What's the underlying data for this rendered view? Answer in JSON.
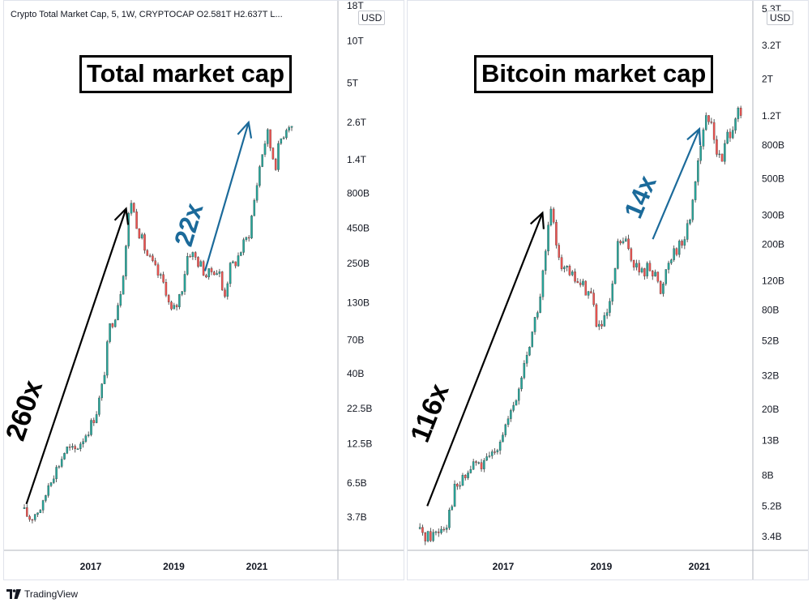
{
  "colors": {
    "candle_up": "#26a69a",
    "candle_down": "#ef5350",
    "arrow_black": "#000000",
    "arrow_blue": "#1b6a9a",
    "axis_text": "#131722",
    "axis_line": "#b2b5be"
  },
  "footer": {
    "brand": "TradingView",
    "logo_icon": "tradingview-logo-icon"
  },
  "chart_data": [
    {
      "type": "candlestick",
      "symbol_line": "Crypto Total Market Cap, 5, 1W, CRYPTOCAP  O2.581T  H2.637T  L...",
      "title": "Total market cap",
      "currency": "USD",
      "y_scale": "log",
      "y_ticks": [
        "18T",
        "10T",
        "5T",
        "2.6T",
        "1.4T",
        "800B",
        "450B",
        "250B",
        "130B",
        "70B",
        "40B",
        "22.5B",
        "12.5B",
        "6.5B",
        "3.7B"
      ],
      "y_tick_values": [
        18000,
        10000,
        5000,
        2600,
        1400,
        800,
        450,
        250,
        130,
        70,
        40,
        22.5,
        12.5,
        6.5,
        3.7
      ],
      "x_ticks": [
        "2017",
        "2019",
        "2021"
      ],
      "x_tick_values": [
        2017,
        2019,
        2021
      ],
      "x_range": [
        2015.4,
        2021.9
      ],
      "series": [
        {
          "name": "Total market cap",
          "x": [
            2015.4,
            2015.55,
            2015.7,
            2015.85,
            2016.0,
            2016.2,
            2016.4,
            2016.6,
            2016.8,
            2017.0,
            2017.15,
            2017.3,
            2017.45,
            2017.6,
            2017.75,
            2017.88,
            2017.95,
            2018.05,
            2018.2,
            2018.35,
            2018.5,
            2018.65,
            2018.8,
            2018.92,
            2019.05,
            2019.2,
            2019.35,
            2019.5,
            2019.65,
            2019.8,
            2019.95,
            2020.1,
            2020.2,
            2020.35,
            2020.5,
            2020.65,
            2020.8,
            2020.95,
            2021.1,
            2021.25,
            2021.35,
            2021.45,
            2021.55,
            2021.65,
            2021.75,
            2021.85
          ],
          "values": [
            4.0,
            3.6,
            4.1,
            4.5,
            6.8,
            8.5,
            11.5,
            11.0,
            13.5,
            17.0,
            22.0,
            35.0,
            85.0,
            110.0,
            180.0,
            420.0,
            770.0,
            560.0,
            390.0,
            290.0,
            240.0,
            200.0,
            170.0,
            110.0,
            120.0,
            170.0,
            310.0,
            280.0,
            240.0,
            200.0,
            230.0,
            210.0,
            140.0,
            230.0,
            260.0,
            330.0,
            400.0,
            750.0,
            1450.0,
            2200.0,
            1600.0,
            1300.0,
            1900.0,
            2200.0,
            2600.0,
            2450.0
          ]
        }
      ],
      "annotations": [
        {
          "label": "260x",
          "color": "black",
          "from": [
            2015.45,
            4.6
          ],
          "to": [
            2017.85,
            620
          ]
        },
        {
          "label": "22x",
          "color": "blue",
          "from": [
            2019.75,
            220
          ],
          "to": [
            2020.8,
            2600
          ]
        }
      ]
    },
    {
      "type": "candlestick",
      "title": "Bitcoin market cap",
      "currency": "USD",
      "y_scale": "log",
      "y_ticks": [
        "5.3T",
        "3.2T",
        "2T",
        "1.2T",
        "800B",
        "500B",
        "300B",
        "200B",
        "120B",
        "80B",
        "52B",
        "32B",
        "20B",
        "13B",
        "8B",
        "5.2B",
        "3.4B"
      ],
      "y_tick_values": [
        5300,
        3200,
        2000,
        1200,
        800,
        500,
        300,
        200,
        120,
        80,
        52,
        32,
        20,
        13,
        8,
        5.2,
        3.4
      ],
      "x_ticks": [
        "2017",
        "2019",
        "2021"
      ],
      "x_tick_values": [
        2017,
        2019,
        2021
      ],
      "x_range": [
        2015.3,
        2021.9
      ],
      "series": [
        {
          "name": "Bitcoin market cap",
          "x": [
            2015.3,
            2015.5,
            2015.7,
            2015.85,
            2016.0,
            2016.2,
            2016.4,
            2016.6,
            2016.8,
            2017.0,
            2017.15,
            2017.3,
            2017.45,
            2017.6,
            2017.75,
            2017.88,
            2017.95,
            2018.05,
            2018.2,
            2018.35,
            2018.5,
            2018.65,
            2018.8,
            2018.92,
            2019.05,
            2019.2,
            2019.35,
            2019.5,
            2019.65,
            2019.8,
            2019.95,
            2020.1,
            2020.2,
            2020.35,
            2020.5,
            2020.65,
            2020.8,
            2020.95,
            2021.1,
            2021.25,
            2021.35,
            2021.45,
            2021.55,
            2021.65,
            2021.75,
            2021.85
          ],
          "values": [
            3.6,
            3.4,
            3.8,
            4.2,
            6.5,
            7.5,
            9.5,
            9.0,
            11.0,
            15.0,
            18.0,
            25.0,
            40.0,
            60.0,
            95.0,
            190.0,
            330.0,
            230.0,
            150.0,
            130.0,
            120.0,
            110.0,
            100.0,
            62.0,
            65.0,
            90.0,
            210.0,
            200.0,
            160.0,
            130.0,
            145.0,
            140.0,
            95.0,
            160.0,
            190.0,
            200.0,
            280.0,
            600.0,
            1100.0,
            1100.0,
            750.0,
            600.0,
            900.0,
            1000.0,
            1250.0,
            1150.0
          ]
        }
      ],
      "annotations": [
        {
          "label": "116x",
          "color": "black",
          "from": [
            2015.45,
            5.2
          ],
          "to": [
            2017.8,
            310
          ]
        },
        {
          "label": "14x",
          "color": "blue",
          "from": [
            2020.05,
            215
          ],
          "to": [
            2021.0,
            1000
          ]
        }
      ]
    }
  ]
}
